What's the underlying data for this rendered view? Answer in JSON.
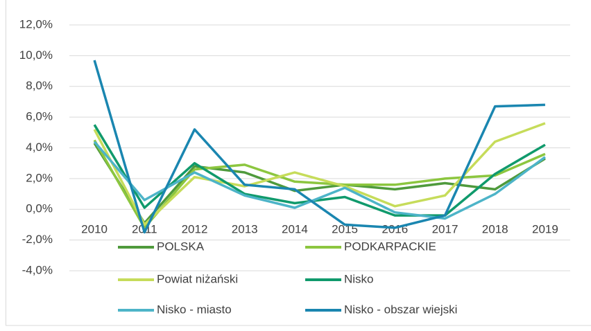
{
  "chart_data": {
    "type": "line",
    "categories": [
      "2010",
      "2011",
      "2012",
      "2013",
      "2014",
      "2015",
      "2016",
      "2017",
      "2018",
      "2019"
    ],
    "series": [
      {
        "name": "POLSKA",
        "color": "#4f9a3c",
        "values": [
          4.3,
          -0.9,
          2.8,
          2.4,
          1.2,
          1.6,
          1.3,
          1.7,
          1.3,
          3.3
        ]
      },
      {
        "name": "PODKARPACKIE",
        "color": "#8cc63f",
        "values": [
          4.5,
          -1.2,
          2.6,
          2.9,
          1.8,
          1.6,
          1.6,
          2.0,
          2.2,
          3.6
        ]
      },
      {
        "name": "Powiat niżański",
        "color": "#c6dc5a",
        "values": [
          5.2,
          -1.0,
          2.1,
          1.5,
          2.4,
          1.5,
          0.2,
          0.9,
          4.4,
          5.6
        ]
      },
      {
        "name": "Nisko",
        "color": "#109a6c",
        "values": [
          5.5,
          0.1,
          3.0,
          1.0,
          0.4,
          0.8,
          -0.4,
          -0.4,
          2.3,
          4.2
        ]
      },
      {
        "name": "Nisko - miasto",
        "color": "#4db4c8",
        "values": [
          4.4,
          0.6,
          2.4,
          0.9,
          0.1,
          1.4,
          -0.2,
          -0.6,
          1.0,
          3.4
        ]
      },
      {
        "name": "Nisko - obszar wiejski",
        "color": "#1a86b0",
        "values": [
          9.7,
          -1.5,
          5.2,
          1.6,
          1.3,
          -1.0,
          -1.2,
          -0.4,
          6.7,
          6.8
        ]
      }
    ],
    "ylim": [
      -4,
      12
    ],
    "yticks": [
      {
        "value": -4,
        "label": "-4,0%"
      },
      {
        "value": -2,
        "label": "-2,0%"
      },
      {
        "value": 0,
        "label": "0,0%"
      },
      {
        "value": 2,
        "label": "2,0%"
      },
      {
        "value": 4,
        "label": "4,0%"
      },
      {
        "value": 6,
        "label": "6,0%"
      },
      {
        "value": 8,
        "label": "8,0%"
      },
      {
        "value": 10,
        "label": "10,0%"
      },
      {
        "value": 12,
        "label": "12,0%"
      }
    ],
    "grid": true,
    "legend": "bottom"
  }
}
